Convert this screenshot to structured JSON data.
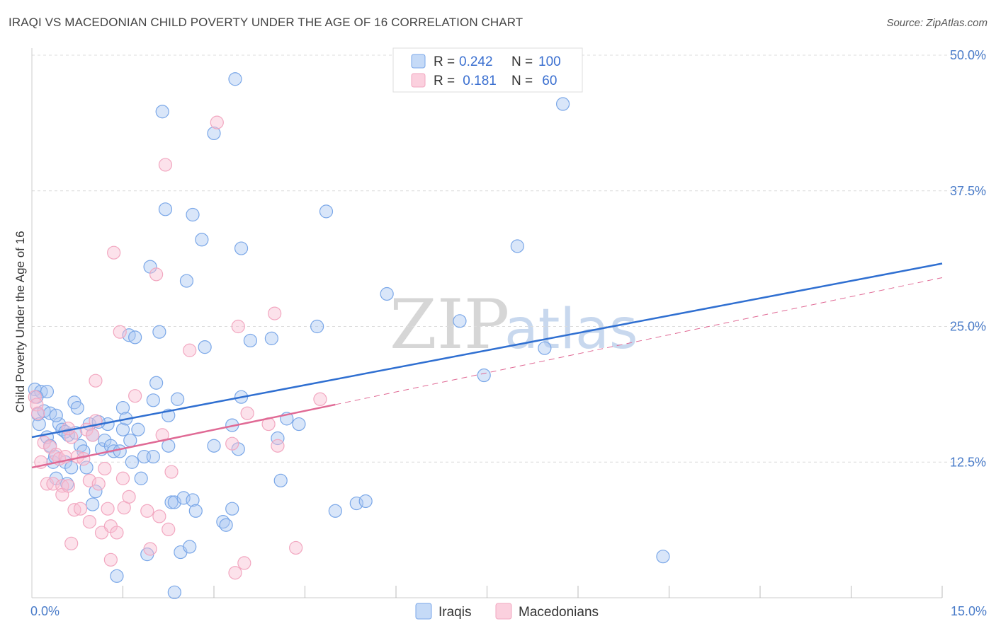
{
  "header": {
    "title": "IRAQI VS MACEDONIAN CHILD POVERTY UNDER THE AGE OF 16 CORRELATION CHART",
    "source": "Source: ZipAtlas.com"
  },
  "watermark": {
    "zip": "ZIP",
    "atlas": "atlas"
  },
  "chart_data": {
    "type": "scatter",
    "ylabel": "Child Poverty Under the Age of 16",
    "xlim": [
      0,
      15
    ],
    "ylim": [
      0,
      50
    ],
    "x_tick_labels": [
      "0.0%",
      "15.0%"
    ],
    "y_ticks": [
      12.5,
      25.0,
      37.5,
      50.0
    ],
    "y_tick_labels": [
      "12.5%",
      "25.0%",
      "37.5%",
      "50.0%"
    ],
    "grid": "horizontal dashed",
    "legend": {
      "position": "top-center",
      "rows": [
        {
          "r_label": "R =",
          "r_value": "0.242",
          "n_label": "N =",
          "n_value": "100"
        },
        {
          "r_label": "R =",
          "r_value": " 0.181",
          "n_label": "N =",
          "n_value": " 60"
        }
      ]
    },
    "series": [
      {
        "name": "Iraqis",
        "color": "#7aa7e8",
        "line_color": "#2f6fd1",
        "trend": {
          "x0": 0.0,
          "y0": 14.8,
          "x1": 15.0,
          "y1": 30.8
        },
        "points": [
          [
            0.05,
            19.2
          ],
          [
            0.1,
            16.9
          ],
          [
            0.12,
            16.0
          ],
          [
            0.15,
            19.0
          ],
          [
            0.2,
            17.2
          ],
          [
            0.25,
            19.0
          ],
          [
            0.25,
            14.8
          ],
          [
            0.3,
            14.0
          ],
          [
            0.3,
            17.0
          ],
          [
            0.35,
            12.5
          ],
          [
            0.38,
            13.0
          ],
          [
            0.4,
            11.0
          ],
          [
            0.45,
            16.0
          ],
          [
            0.5,
            15.5
          ],
          [
            0.55,
            12.5
          ],
          [
            0.55,
            15.3
          ],
          [
            0.6,
            15.0
          ],
          [
            0.65,
            12.0
          ],
          [
            0.7,
            18.0
          ],
          [
            0.72,
            15.2
          ],
          [
            0.75,
            17.5
          ],
          [
            0.8,
            14.0
          ],
          [
            0.85,
            13.5
          ],
          [
            0.9,
            12.0
          ],
          [
            0.95,
            16.0
          ],
          [
            1.0,
            15.0
          ],
          [
            1.0,
            8.6
          ],
          [
            1.05,
            9.8
          ],
          [
            1.15,
            13.7
          ],
          [
            1.2,
            14.5
          ],
          [
            1.25,
            16.0
          ],
          [
            1.3,
            14.0
          ],
          [
            1.35,
            13.5
          ],
          [
            1.4,
            2.0
          ],
          [
            1.45,
            13.5
          ],
          [
            1.5,
            15.5
          ],
          [
            1.5,
            17.5
          ],
          [
            1.55,
            16.5
          ],
          [
            1.6,
            24.2
          ],
          [
            1.62,
            14.5
          ],
          [
            1.65,
            12.5
          ],
          [
            1.7,
            24.0
          ],
          [
            1.75,
            15.5
          ],
          [
            1.8,
            11.0
          ],
          [
            1.85,
            13.0
          ],
          [
            1.9,
            4.0
          ],
          [
            1.95,
            30.5
          ],
          [
            2.0,
            13.0
          ],
          [
            2.0,
            18.2
          ],
          [
            2.05,
            19.8
          ],
          [
            2.1,
            24.5
          ],
          [
            2.15,
            44.8
          ],
          [
            2.2,
            35.8
          ],
          [
            2.25,
            14.0
          ],
          [
            2.3,
            8.8
          ],
          [
            2.35,
            8.8
          ],
          [
            2.35,
            0.5
          ],
          [
            2.4,
            18.3
          ],
          [
            2.45,
            4.2
          ],
          [
            2.5,
            9.2
          ],
          [
            2.55,
            29.2
          ],
          [
            2.6,
            4.7
          ],
          [
            2.65,
            35.3
          ],
          [
            2.65,
            9.0
          ],
          [
            2.7,
            8.0
          ],
          [
            2.8,
            33.0
          ],
          [
            2.85,
            23.1
          ],
          [
            3.0,
            42.8
          ],
          [
            3.15,
            7.0
          ],
          [
            3.2,
            6.7
          ],
          [
            3.3,
            15.9
          ],
          [
            3.3,
            8.2
          ],
          [
            3.35,
            47.8
          ],
          [
            3.4,
            13.7
          ],
          [
            3.45,
            32.2
          ],
          [
            3.45,
            18.5
          ],
          [
            3.6,
            23.7
          ],
          [
            3.95,
            23.9
          ],
          [
            4.05,
            14.7
          ],
          [
            4.1,
            10.8
          ],
          [
            4.2,
            16.5
          ],
          [
            4.4,
            16.0
          ],
          [
            4.7,
            25.0
          ],
          [
            4.85,
            35.6
          ],
          [
            5.0,
            8.0
          ],
          [
            5.35,
            8.7
          ],
          [
            5.5,
            8.9
          ],
          [
            5.85,
            28.0
          ],
          [
            7.05,
            25.5
          ],
          [
            7.45,
            20.5
          ],
          [
            8.0,
            32.4
          ],
          [
            8.45,
            23.0
          ],
          [
            8.75,
            45.5
          ],
          [
            10.4,
            3.8
          ],
          [
            0.08,
            18.5
          ],
          [
            0.4,
            16.8
          ],
          [
            0.58,
            10.5
          ],
          [
            1.1,
            16.2
          ],
          [
            2.25,
            16.8
          ],
          [
            3.0,
            14.0
          ]
        ]
      },
      {
        "name": "Macedonians",
        "color": "#f2a7c0",
        "line_color": "#e06a95",
        "trend": {
          "x0": 0.0,
          "y0": 12.0,
          "x1": 5.0,
          "y1": 17.8
        },
        "trend_extended": {
          "x0": 5.0,
          "y0": 17.8,
          "x1": 15.0,
          "y1": 29.5
        },
        "points": [
          [
            0.05,
            18.5
          ],
          [
            0.08,
            17.8
          ],
          [
            0.1,
            17.0
          ],
          [
            0.15,
            12.5
          ],
          [
            0.2,
            14.3
          ],
          [
            0.25,
            10.5
          ],
          [
            0.3,
            13.9
          ],
          [
            0.35,
            10.5
          ],
          [
            0.4,
            13.2
          ],
          [
            0.45,
            12.8
          ],
          [
            0.5,
            10.3
          ],
          [
            0.5,
            9.5
          ],
          [
            0.55,
            13.0
          ],
          [
            0.6,
            10.3
          ],
          [
            0.65,
            14.8
          ],
          [
            0.65,
            5.0
          ],
          [
            0.7,
            8.1
          ],
          [
            0.75,
            13.0
          ],
          [
            0.8,
            8.2
          ],
          [
            0.85,
            12.8
          ],
          [
            0.9,
            15.5
          ],
          [
            0.95,
            10.8
          ],
          [
            0.95,
            7.0
          ],
          [
            1.0,
            15.0
          ],
          [
            1.05,
            20.0
          ],
          [
            1.1,
            10.5
          ],
          [
            1.15,
            6.0
          ],
          [
            1.2,
            11.9
          ],
          [
            1.25,
            8.2
          ],
          [
            1.3,
            3.5
          ],
          [
            1.3,
            6.6
          ],
          [
            1.35,
            31.8
          ],
          [
            1.4,
            6.0
          ],
          [
            1.45,
            24.5
          ],
          [
            1.5,
            11.0
          ],
          [
            1.52,
            8.3
          ],
          [
            1.6,
            9.3
          ],
          [
            1.7,
            18.6
          ],
          [
            1.9,
            8.0
          ],
          [
            1.95,
            4.5
          ],
          [
            2.05,
            29.8
          ],
          [
            2.1,
            7.5
          ],
          [
            2.15,
            15.0
          ],
          [
            2.2,
            39.9
          ],
          [
            2.25,
            6.3
          ],
          [
            2.3,
            11.6
          ],
          [
            2.6,
            22.8
          ],
          [
            3.05,
            43.8
          ],
          [
            3.3,
            14.2
          ],
          [
            3.35,
            2.3
          ],
          [
            3.4,
            25.0
          ],
          [
            3.5,
            3.2
          ],
          [
            3.55,
            17.0
          ],
          [
            3.9,
            16.0
          ],
          [
            4.0,
            26.2
          ],
          [
            4.05,
            14.0
          ],
          [
            4.35,
            4.6
          ],
          [
            4.75,
            18.3
          ],
          [
            1.05,
            16.3
          ],
          [
            0.6,
            15.6
          ]
        ]
      }
    ]
  }
}
